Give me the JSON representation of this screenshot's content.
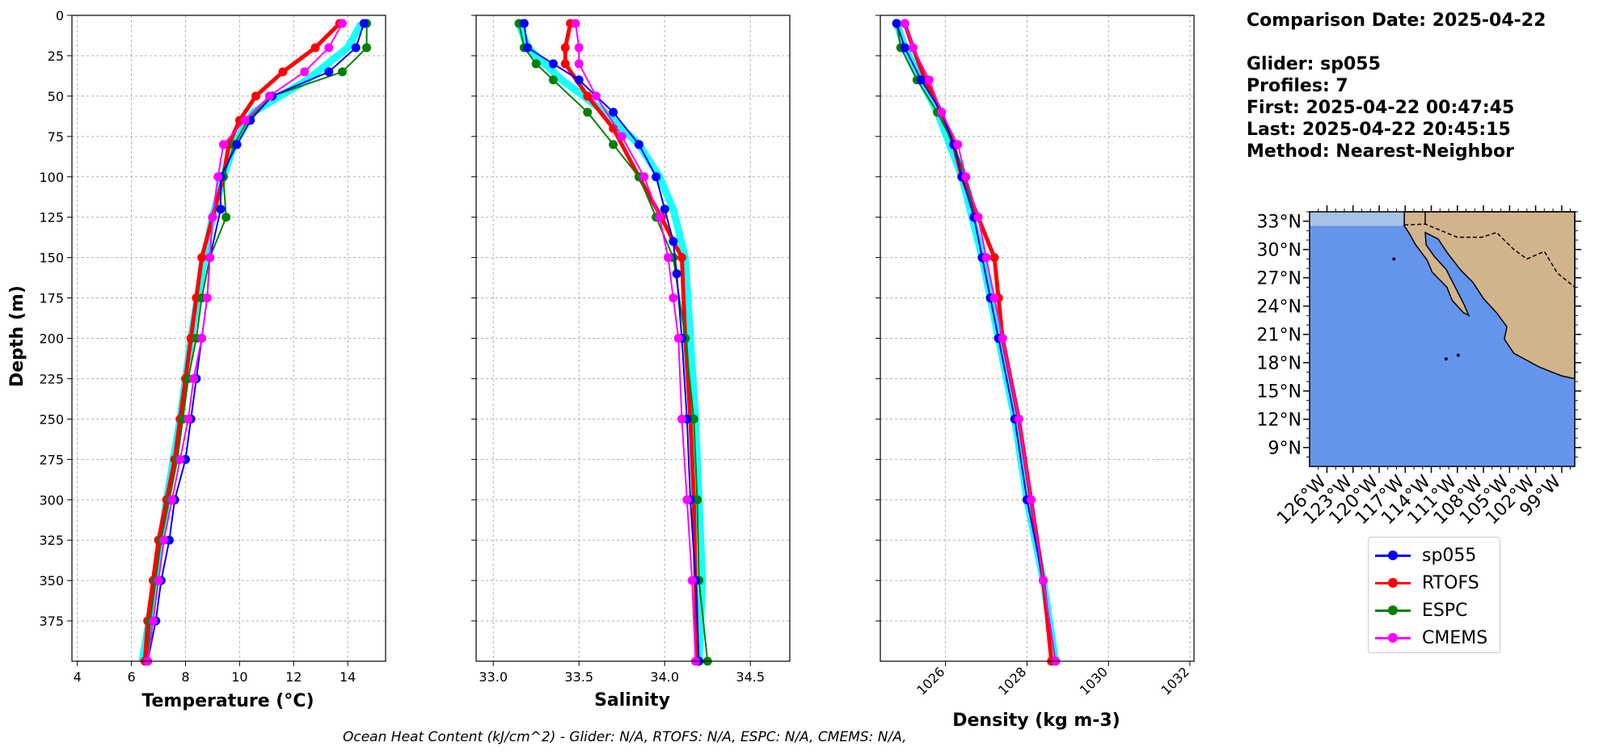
{
  "header": {
    "comparison_date": "Comparison Date: 2025-04-22",
    "glider": "Glider: sp055",
    "profiles": "Profiles: 7",
    "first": "First: 2025-04-22 00:47:45",
    "last": "Last: 2025-04-22 20:45:15",
    "method": "Method: Nearest-Neighbor"
  },
  "footer": {
    "ohc_text": "Ocean Heat Content (kJ/cm^2) - Glider: N/A,  RTOFS: N/A,  ESPC: N/A,  CMEMS: N/A,"
  },
  "legend": [
    {
      "name": "sp055",
      "color": "#0000ff"
    },
    {
      "name": "RTOFS",
      "color": "#ff0000"
    },
    {
      "name": "ESPC",
      "color": "#008000"
    },
    {
      "name": "CMEMS",
      "color": "#ff00ff"
    }
  ],
  "colors": {
    "raw_profiles": "#00ffff",
    "ocean": "#6495ed",
    "land": "#d2b48c",
    "shelf": "#a5c3e8"
  },
  "chart_data": [
    {
      "type": "line",
      "title": "",
      "xlabel": "Temperature (°C)",
      "ylabel": "Depth (m)",
      "xlim": [
        3.8,
        15.4
      ],
      "ylim": [
        400,
        0
      ],
      "xticks": [
        4,
        6,
        8,
        10,
        12,
        14
      ],
      "yticks": [
        0,
        25,
        50,
        75,
        100,
        125,
        150,
        175,
        200,
        225,
        250,
        275,
        300,
        325,
        350,
        375
      ],
      "grid": true,
      "series": [
        {
          "name": "sp055",
          "depth": [
            5,
            20,
            35,
            50,
            65,
            80,
            100,
            120,
            150,
            175,
            200,
            225,
            250,
            275,
            300,
            325,
            350,
            375,
            400
          ],
          "values": [
            14.6,
            14.3,
            13.3,
            11.2,
            10.4,
            9.9,
            9.3,
            9.3,
            8.9,
            8.8,
            8.6,
            8.4,
            8.2,
            8.0,
            7.6,
            7.4,
            7.1,
            6.9,
            6.6
          ]
        },
        {
          "name": "RTOFS",
          "depth": [
            5,
            20,
            35,
            50,
            65,
            80,
            100,
            125,
            150,
            175,
            200,
            225,
            250,
            275,
            300,
            325,
            350,
            375,
            400
          ],
          "values": [
            13.7,
            12.8,
            11.6,
            10.6,
            10.0,
            9.6,
            9.4,
            9.0,
            8.6,
            8.4,
            8.2,
            8.0,
            7.8,
            7.6,
            7.3,
            7.0,
            6.8,
            6.6,
            6.5
          ]
        },
        {
          "name": "ESPC",
          "depth": [
            5,
            20,
            35,
            50,
            65,
            80,
            100,
            125,
            150,
            175,
            200,
            225,
            250,
            275,
            300,
            325,
            350,
            375,
            400
          ],
          "values": [
            14.7,
            14.7,
            13.8,
            11.2,
            10.3,
            9.8,
            9.4,
            9.5,
            8.9,
            8.6,
            8.4,
            8.1,
            7.9,
            7.7,
            7.4,
            7.1,
            6.9,
            6.7,
            6.6
          ]
        },
        {
          "name": "CMEMS",
          "depth": [
            5,
            20,
            35,
            50,
            65,
            80,
            100,
            125,
            150,
            175,
            200,
            225,
            250,
            275,
            300,
            325,
            350,
            375,
            400
          ],
          "values": [
            13.8,
            13.3,
            12.4,
            11.1,
            10.2,
            9.4,
            9.2,
            9.0,
            8.9,
            8.8,
            8.6,
            8.3,
            8.1,
            7.8,
            7.5,
            7.2,
            7.0,
            6.8,
            6.6
          ]
        },
        {
          "name": "",
          "depth": [
            5,
            20,
            40,
            60,
            80,
            100,
            125,
            150,
            200,
            250,
            300,
            350,
            400
          ],
          "values": [
            14.5,
            14.0,
            12.5,
            10.5,
            9.8,
            9.4,
            9.0,
            8.7,
            8.2,
            7.8,
            7.3,
            6.9,
            6.4
          ]
        }
      ]
    },
    {
      "type": "line",
      "title": "",
      "xlabel": "Salinity",
      "ylabel": "",
      "xlim": [
        32.9,
        34.73
      ],
      "ylim": [
        400,
        0
      ],
      "xticks": [
        33.0,
        33.5,
        34.0,
        34.5
      ],
      "grid": true,
      "series": [
        {
          "name": "sp055",
          "depth": [
            5,
            20,
            30,
            40,
            60,
            80,
            100,
            120,
            140,
            160,
            200,
            250,
            300,
            350,
            400
          ],
          "values": [
            33.18,
            33.2,
            33.35,
            33.5,
            33.7,
            33.85,
            33.95,
            34.0,
            34.05,
            34.07,
            34.1,
            34.13,
            34.15,
            34.18,
            34.2
          ]
        },
        {
          "name": "RTOFS",
          "depth": [
            5,
            20,
            30,
            50,
            70,
            100,
            125,
            150,
            200,
            250,
            300,
            350,
            400
          ],
          "values": [
            33.45,
            33.42,
            33.42,
            33.55,
            33.7,
            33.85,
            33.98,
            34.1,
            34.12,
            34.15,
            34.17,
            34.18,
            34.19
          ]
        },
        {
          "name": "ESPC",
          "depth": [
            5,
            20,
            30,
            40,
            60,
            80,
            100,
            125,
            150,
            200,
            250,
            300,
            350,
            400
          ],
          "values": [
            33.15,
            33.18,
            33.25,
            33.35,
            33.55,
            33.7,
            33.85,
            33.95,
            34.05,
            34.12,
            34.17,
            34.19,
            34.2,
            34.25
          ]
        },
        {
          "name": "CMEMS",
          "depth": [
            5,
            20,
            30,
            50,
            75,
            100,
            125,
            150,
            175,
            200,
            250,
            300,
            350,
            400
          ],
          "values": [
            33.48,
            33.5,
            33.5,
            33.6,
            33.75,
            33.88,
            33.97,
            34.02,
            34.05,
            34.08,
            34.1,
            34.13,
            34.16,
            34.18
          ]
        },
        {
          "name": "",
          "depth": [
            5,
            20,
            40,
            60,
            80,
            100,
            120,
            150,
            200,
            250,
            300,
            350,
            400
          ],
          "values": [
            33.15,
            33.2,
            33.4,
            33.65,
            33.85,
            33.97,
            34.05,
            34.12,
            34.15,
            34.18,
            34.2,
            34.22,
            34.2
          ]
        }
      ]
    },
    {
      "type": "line",
      "title": "",
      "xlabel": "Density (kg m-3)",
      "ylabel": "",
      "xlim": [
        1024.4,
        1032.1
      ],
      "ylim": [
        400,
        0
      ],
      "xticks": [
        1026,
        1028,
        1030,
        1032
      ],
      "grid": true,
      "series": [
        {
          "name": "sp055",
          "depth": [
            5,
            20,
            40,
            60,
            80,
            100,
            125,
            150,
            175,
            200,
            250,
            300,
            350,
            400
          ],
          "values": [
            1024.8,
            1025.0,
            1025.4,
            1025.9,
            1026.2,
            1026.4,
            1026.7,
            1026.9,
            1027.1,
            1027.3,
            1027.7,
            1028.0,
            1028.4,
            1028.7
          ]
        },
        {
          "name": "RTOFS",
          "depth": [
            5,
            20,
            40,
            60,
            80,
            100,
            125,
            150,
            175,
            200,
            250,
            300,
            350,
            400
          ],
          "values": [
            1025.0,
            1025.2,
            1025.5,
            1025.9,
            1026.2,
            1026.4,
            1026.8,
            1027.2,
            1027.3,
            1027.4,
            1027.8,
            1028.1,
            1028.4,
            1028.6
          ]
        },
        {
          "name": "ESPC",
          "depth": [
            5,
            20,
            40,
            60,
            80,
            100,
            125,
            150,
            175,
            200,
            250,
            300,
            350,
            400
          ],
          "values": [
            1024.8,
            1024.9,
            1025.3,
            1025.8,
            1026.2,
            1026.5,
            1026.7,
            1026.9,
            1027.1,
            1027.3,
            1027.7,
            1028.0,
            1028.4,
            1028.7
          ]
        },
        {
          "name": "CMEMS",
          "depth": [
            5,
            20,
            40,
            60,
            80,
            100,
            125,
            150,
            175,
            200,
            250,
            300,
            350,
            400
          ],
          "values": [
            1025.0,
            1025.2,
            1025.6,
            1025.9,
            1026.3,
            1026.5,
            1026.8,
            1027.0,
            1027.2,
            1027.4,
            1027.8,
            1028.1,
            1028.4,
            1028.7
          ]
        },
        {
          "name": "",
          "depth": [
            5,
            20,
            40,
            60,
            80,
            100,
            150,
            200,
            250,
            300,
            350,
            400
          ],
          "values": [
            1024.8,
            1025.0,
            1025.4,
            1025.8,
            1026.1,
            1026.4,
            1026.9,
            1027.3,
            1027.7,
            1028.0,
            1028.4,
            1028.7
          ]
        }
      ]
    },
    {
      "type": "map",
      "title": "",
      "xlabel": "",
      "ylabel": "",
      "lon_range": [
        -128,
        -97.5
      ],
      "lat_range": [
        7,
        34
      ],
      "lat_ticks": [
        "33°N",
        "30°N",
        "27°N",
        "24°N",
        "21°N",
        "18°N",
        "15°N",
        "12°N",
        "9°N"
      ],
      "lat_values": [
        33,
        30,
        27,
        24,
        21,
        18,
        15,
        12,
        9
      ],
      "lon_ticks": [
        "126°W",
        "123°W",
        "120°W",
        "117°W",
        "114°W",
        "111°W",
        "108°W",
        "105°W",
        "102°W",
        "99°W"
      ],
      "lon_values": [
        -126,
        -123,
        -120,
        -117,
        -114,
        -111,
        -108,
        -105,
        -102,
        -99
      ]
    }
  ]
}
